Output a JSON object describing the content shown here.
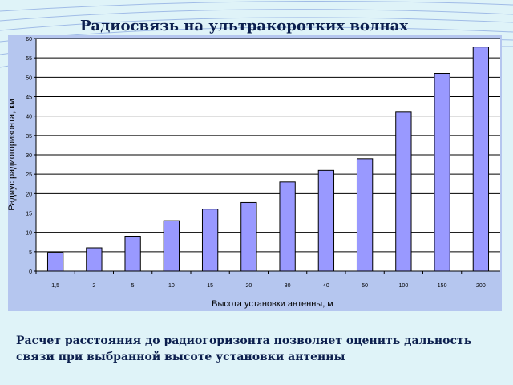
{
  "slide": {
    "title": "Радиосвязь  на ультракоротких волнах",
    "caption": "Расчет расстояния до радиогоризонта позволяет оценить дальность связи при выбранной высоте установки антенны"
  },
  "colors": {
    "background": "#dff3f8",
    "chart_frame": "#b5c6ef",
    "plot_area": "#ffffff",
    "bar_fill": "#9999ff",
    "bar_stroke": "#000000"
  },
  "chart_data": {
    "type": "bar",
    "categories": [
      "1,5",
      "2",
      "5",
      "10",
      "15",
      "20",
      "30",
      "40",
      "50",
      "100",
      "150",
      "200"
    ],
    "values": [
      4.8,
      6,
      9,
      13,
      16,
      17.7,
      23,
      26,
      29,
      41,
      51,
      57.8
    ],
    "xlabel": "Высота установки антенны, м",
    "ylabel": "Радиус радиогоризонта, км",
    "ylim": [
      0,
      60
    ],
    "yticks": [
      0,
      5,
      10,
      15,
      20,
      25,
      30,
      35,
      40,
      45,
      50,
      55,
      60
    ],
    "grid": true,
    "legend": "none"
  }
}
